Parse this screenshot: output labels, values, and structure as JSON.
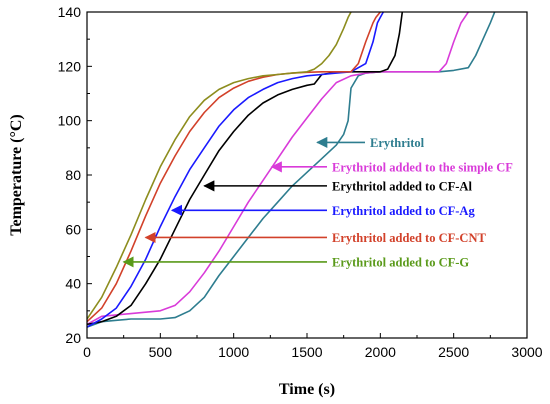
{
  "chart_data": {
    "type": "line",
    "xlabel": "Time (s)",
    "ylabel": "Temperature (°C)",
    "xlim": [
      0,
      3000
    ],
    "ylim": [
      20,
      140
    ],
    "xticks": [
      0,
      500,
      1000,
      1500,
      2000,
      2500,
      3000
    ],
    "yticks": [
      20,
      40,
      60,
      80,
      100,
      120,
      140
    ],
    "grid": false,
    "series": [
      {
        "name": "Erythritol",
        "color": "#2e7d8f",
        "x": [
          0,
          100,
          200,
          300,
          400,
          500,
          600,
          700,
          800,
          900,
          1000,
          1100,
          1200,
          1300,
          1400,
          1500,
          1600,
          1700,
          1750,
          1780,
          1800,
          1850,
          1900,
          2000,
          2100,
          2200,
          2300,
          2400,
          2500,
          2600,
          2650,
          2700,
          2750,
          2780
        ],
        "y": [
          24,
          26,
          26.5,
          27,
          27,
          27,
          27.5,
          30,
          35,
          43,
          50,
          57,
          64,
          70,
          76,
          81,
          86,
          91,
          95,
          100,
          112,
          116.5,
          117.5,
          118,
          118,
          118,
          118,
          118,
          118.5,
          119.5,
          124,
          130,
          136,
          140
        ]
      },
      {
        "name": "Erythritol added to the simple CF",
        "color": "#d93bd9",
        "x": [
          0,
          100,
          200,
          300,
          400,
          500,
          600,
          700,
          800,
          900,
          1000,
          1100,
          1200,
          1300,
          1400,
          1500,
          1600,
          1700,
          1800,
          1900,
          2000,
          2100,
          2200,
          2300,
          2400,
          2450,
          2500,
          2550,
          2600
        ],
        "y": [
          25,
          28,
          28.5,
          29,
          29.5,
          30,
          32,
          37,
          44,
          52,
          61,
          70,
          78,
          86,
          94,
          101,
          108,
          114,
          116.5,
          117.5,
          118,
          118,
          118,
          118,
          118,
          121,
          129,
          136,
          140
        ]
      },
      {
        "name": "Erythritol added to CF-Al",
        "color": "#000000",
        "x": [
          0,
          100,
          200,
          300,
          400,
          500,
          600,
          700,
          800,
          900,
          1000,
          1100,
          1200,
          1300,
          1400,
          1500,
          1550,
          1600,
          1700,
          1800,
          1900,
          2000,
          2050,
          2100,
          2130,
          2150
        ],
        "y": [
          25,
          26,
          28,
          32,
          40,
          49,
          60,
          71,
          80,
          89,
          96,
          102,
          106.5,
          109.5,
          111.5,
          113,
          113.5,
          117,
          117.8,
          118,
          118,
          118,
          119,
          124,
          132,
          140
        ]
      },
      {
        "name": "Erythritol added to CF-Ag",
        "color": "#1a1aff",
        "x": [
          0,
          100,
          200,
          300,
          400,
          500,
          600,
          700,
          800,
          900,
          1000,
          1100,
          1200,
          1300,
          1400,
          1500,
          1600,
          1700,
          1800,
          1900,
          1950,
          1980,
          2000,
          2020
        ],
        "y": [
          24,
          27,
          31,
          39,
          49,
          61,
          72,
          82,
          90,
          98,
          104,
          108.5,
          111.5,
          114,
          115.5,
          116.5,
          117,
          117.5,
          118,
          121,
          129,
          136,
          138,
          140
        ]
      },
      {
        "name": "Erythritol added to CF-CNT",
        "color": "#d2412a",
        "x": [
          0,
          100,
          200,
          300,
          400,
          500,
          600,
          700,
          800,
          900,
          1000,
          1100,
          1200,
          1300,
          1400,
          1500,
          1600,
          1700,
          1800,
          1850,
          1900,
          1950,
          1970,
          2000
        ],
        "y": [
          26,
          31,
          40,
          52,
          65,
          77,
          87,
          96,
          103,
          108.5,
          112,
          114.5,
          116,
          117,
          117.5,
          117.8,
          118,
          118,
          118,
          121,
          129,
          136,
          138,
          140
        ]
      },
      {
        "name": "Erythritol added to CF-G",
        "color": "#8d8d1e",
        "x": [
          0,
          100,
          200,
          300,
          400,
          500,
          600,
          700,
          800,
          900,
          1000,
          1100,
          1200,
          1300,
          1400,
          1500,
          1550,
          1600,
          1650,
          1700,
          1750,
          1780,
          1800
        ],
        "y": [
          27,
          35,
          46,
          58,
          71,
          83,
          93,
          101.5,
          107.5,
          111.5,
          114,
          115.5,
          116.5,
          117,
          117.5,
          118,
          119,
          121,
          124,
          128,
          134,
          138,
          140
        ]
      }
    ],
    "annotations": [
      {
        "text": "Erythritol",
        "color": "#2e7d8f",
        "arrow_tip": [
          1570,
          92
        ]
      },
      {
        "text": "Erythritol added to the simple CF",
        "color": "#d93bd9",
        "arrow_tip": [
          1260,
          83
        ]
      },
      {
        "text": "Erythritol added to CF-Al",
        "color": "#000000",
        "arrow_tip": [
          800,
          76
        ]
      },
      {
        "text": "Erythritol added to CF-Ag",
        "color": "#1a1aff",
        "arrow_tip": [
          580,
          67
        ]
      },
      {
        "text": "Erythritol added to CF-CNT",
        "color": "#d2412a",
        "arrow_tip": [
          400,
          57
        ]
      },
      {
        "text": "Erythritol added to CF-G",
        "color": "#5a9a1a",
        "arrow_tip": [
          250,
          48
        ]
      }
    ]
  }
}
